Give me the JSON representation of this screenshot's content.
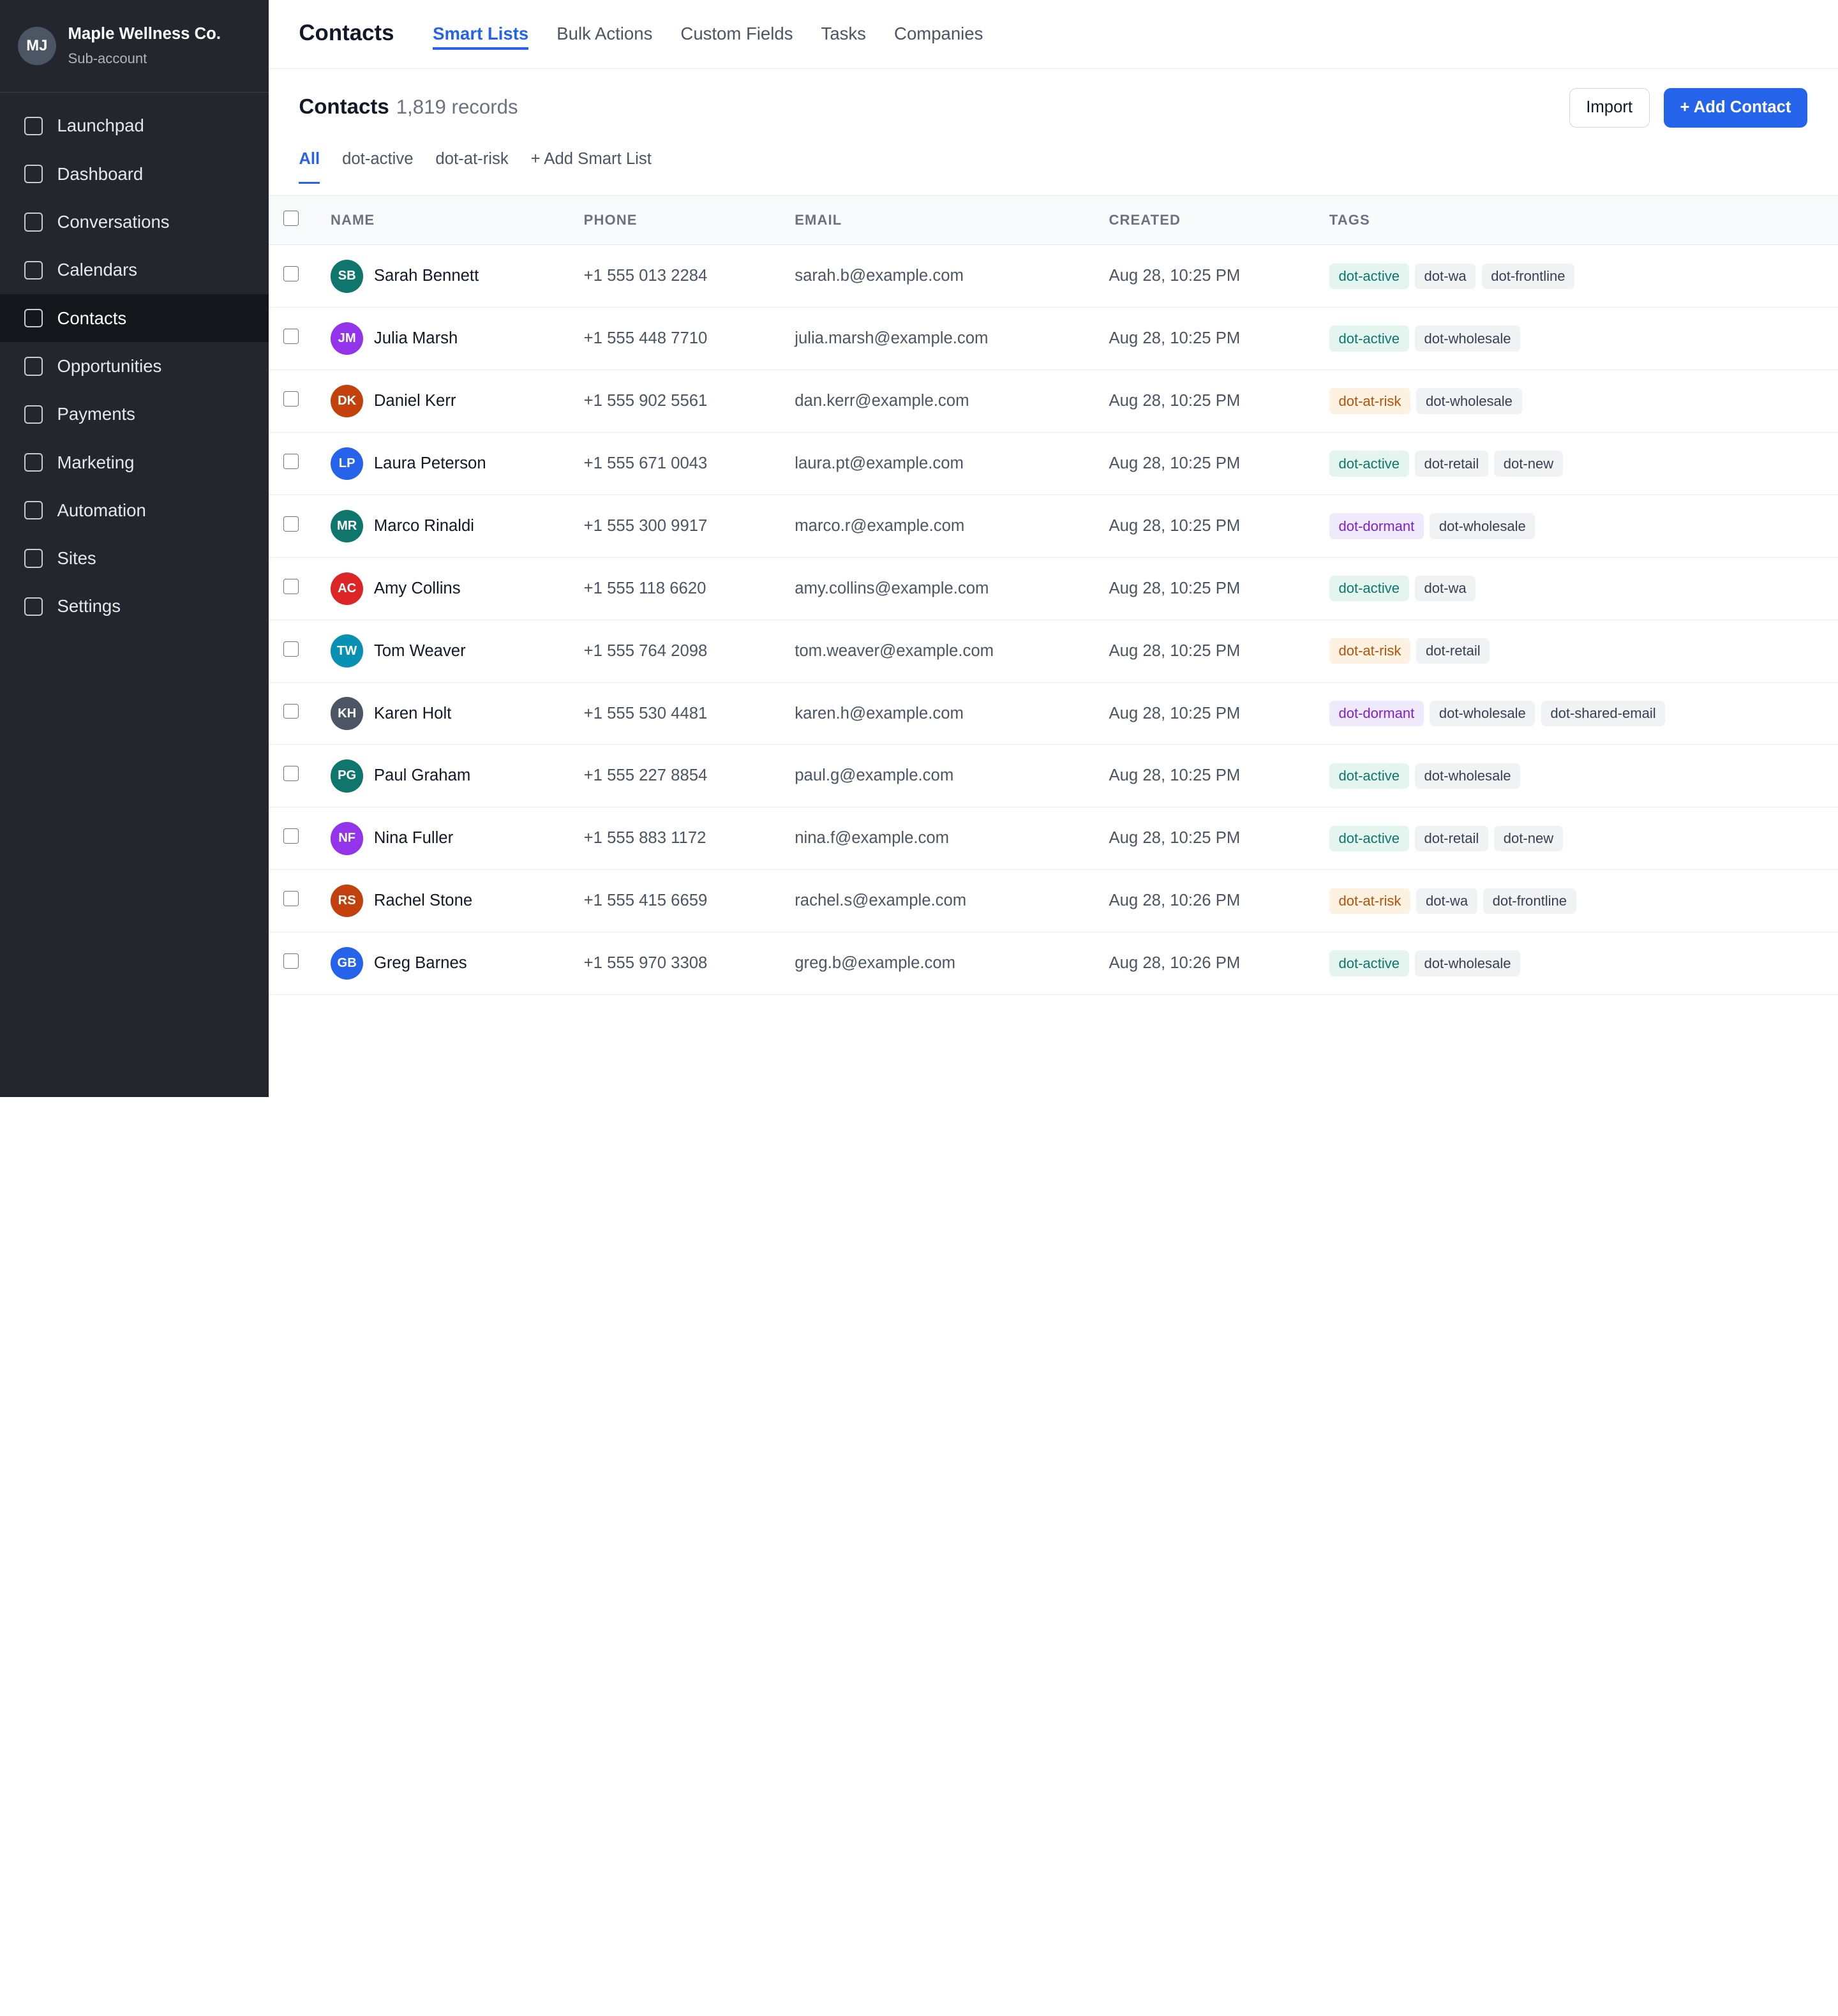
{
  "account": {
    "initials": "MJ",
    "name": "Maple Wellness Co.",
    "subtitle": "Sub-account"
  },
  "sidebar": {
    "items": [
      {
        "label": "Launchpad",
        "active": false
      },
      {
        "label": "Dashboard",
        "active": false
      },
      {
        "label": "Conversations",
        "active": false
      },
      {
        "label": "Calendars",
        "active": false
      },
      {
        "label": "Contacts",
        "active": true
      },
      {
        "label": "Opportunities",
        "active": false
      },
      {
        "label": "Payments",
        "active": false
      },
      {
        "label": "Marketing",
        "active": false
      },
      {
        "label": "Automation",
        "active": false
      },
      {
        "label": "Sites",
        "active": false
      },
      {
        "label": "Settings",
        "active": false
      }
    ]
  },
  "topbar": {
    "title": "Contacts",
    "tabs": [
      {
        "label": "Smart Lists",
        "active": true
      },
      {
        "label": "Bulk Actions",
        "active": false
      },
      {
        "label": "Custom Fields",
        "active": false
      },
      {
        "label": "Tasks",
        "active": false
      },
      {
        "label": "Companies",
        "active": false
      }
    ]
  },
  "list_header": {
    "title": "Contacts",
    "record_count": "1,819 records",
    "import_label": "Import",
    "add_label": "+ Add Contact"
  },
  "smart_lists": [
    {
      "label": "All",
      "active": true
    },
    {
      "label": "dot-active",
      "active": false
    },
    {
      "label": "dot-at-risk",
      "active": false
    },
    {
      "label": "+ Add Smart List",
      "active": false
    }
  ],
  "table": {
    "columns": [
      "NAME",
      "PHONE",
      "EMAIL",
      "CREATED",
      "TAGS"
    ],
    "rows": [
      {
        "initials": "SB",
        "avatar_color": "#0f766e",
        "name": "Sarah Bennett",
        "phone": "+1 555 013 2284",
        "email": "sarah.b@example.com",
        "created": "Aug 28, 10:25 PM",
        "tags": [
          "dot-active",
          "dot-wa",
          "dot-frontline"
        ]
      },
      {
        "initials": "JM",
        "avatar_color": "#9333ea",
        "name": "Julia Marsh",
        "phone": "+1 555 448 7710",
        "email": "julia.marsh@example.com",
        "created": "Aug 28, 10:25 PM",
        "tags": [
          "dot-active",
          "dot-wholesale"
        ]
      },
      {
        "initials": "DK",
        "avatar_color": "#c2410c",
        "name": "Daniel Kerr",
        "phone": "+1 555 902 5561",
        "email": "dan.kerr@example.com",
        "created": "Aug 28, 10:25 PM",
        "tags": [
          "dot-at-risk",
          "dot-wholesale"
        ]
      },
      {
        "initials": "LP",
        "avatar_color": "#2563eb",
        "name": "Laura Peterson",
        "phone": "+1 555 671 0043",
        "email": "laura.pt@example.com",
        "created": "Aug 28, 10:25 PM",
        "tags": [
          "dot-active",
          "dot-retail",
          "dot-new"
        ]
      },
      {
        "initials": "MR",
        "avatar_color": "#0f766e",
        "name": "Marco Rinaldi",
        "phone": "+1 555 300 9917",
        "email": "marco.r@example.com",
        "created": "Aug 28, 10:25 PM",
        "tags": [
          "dot-dormant",
          "dot-wholesale"
        ]
      },
      {
        "initials": "AC",
        "avatar_color": "#dc2626",
        "name": "Amy Collins",
        "phone": "+1 555 118 6620",
        "email": "amy.collins@example.com",
        "created": "Aug 28, 10:25 PM",
        "tags": [
          "dot-active",
          "dot-wa"
        ]
      },
      {
        "initials": "TW",
        "avatar_color": "#0891b2",
        "name": "Tom Weaver",
        "phone": "+1 555 764 2098",
        "email": "tom.weaver@example.com",
        "created": "Aug 28, 10:25 PM",
        "tags": [
          "dot-at-risk",
          "dot-retail"
        ]
      },
      {
        "initials": "KH",
        "avatar_color": "#4b5563",
        "name": "Karen Holt",
        "phone": "+1 555 530 4481",
        "email": "karen.h@example.com",
        "created": "Aug 28, 10:25 PM",
        "tags": [
          "dot-dormant",
          "dot-wholesale",
          "dot-shared-email"
        ]
      },
      {
        "initials": "PG",
        "avatar_color": "#0f766e",
        "name": "Paul Graham",
        "phone": "+1 555 227 8854",
        "email": "paul.g@example.com",
        "created": "Aug 28, 10:25 PM",
        "tags": [
          "dot-active",
          "dot-wholesale"
        ]
      },
      {
        "initials": "NF",
        "avatar_color": "#9333ea",
        "name": "Nina Fuller",
        "phone": "+1 555 883 1172",
        "email": "nina.f@example.com",
        "created": "Aug 28, 10:25 PM",
        "tags": [
          "dot-active",
          "dot-retail",
          "dot-new"
        ]
      },
      {
        "initials": "RS",
        "avatar_color": "#c2410c",
        "name": "Rachel Stone",
        "phone": "+1 555 415 6659",
        "email": "rachel.s@example.com",
        "created": "Aug 28, 10:26 PM",
        "tags": [
          "dot-at-risk",
          "dot-wa",
          "dot-frontline"
        ]
      },
      {
        "initials": "GB",
        "avatar_color": "#2563eb",
        "name": "Greg Barnes",
        "phone": "+1 555 970 3308",
        "email": "greg.b@example.com",
        "created": "Aug 28, 10:26 PM",
        "tags": [
          "dot-active",
          "dot-wholesale"
        ]
      }
    ]
  },
  "colors": {
    "accent": "#2563eb",
    "sidebar_bg": "#23272d",
    "sidebar_active_bg": "#14171b",
    "sidebar_active_marker": "#22c55e"
  }
}
